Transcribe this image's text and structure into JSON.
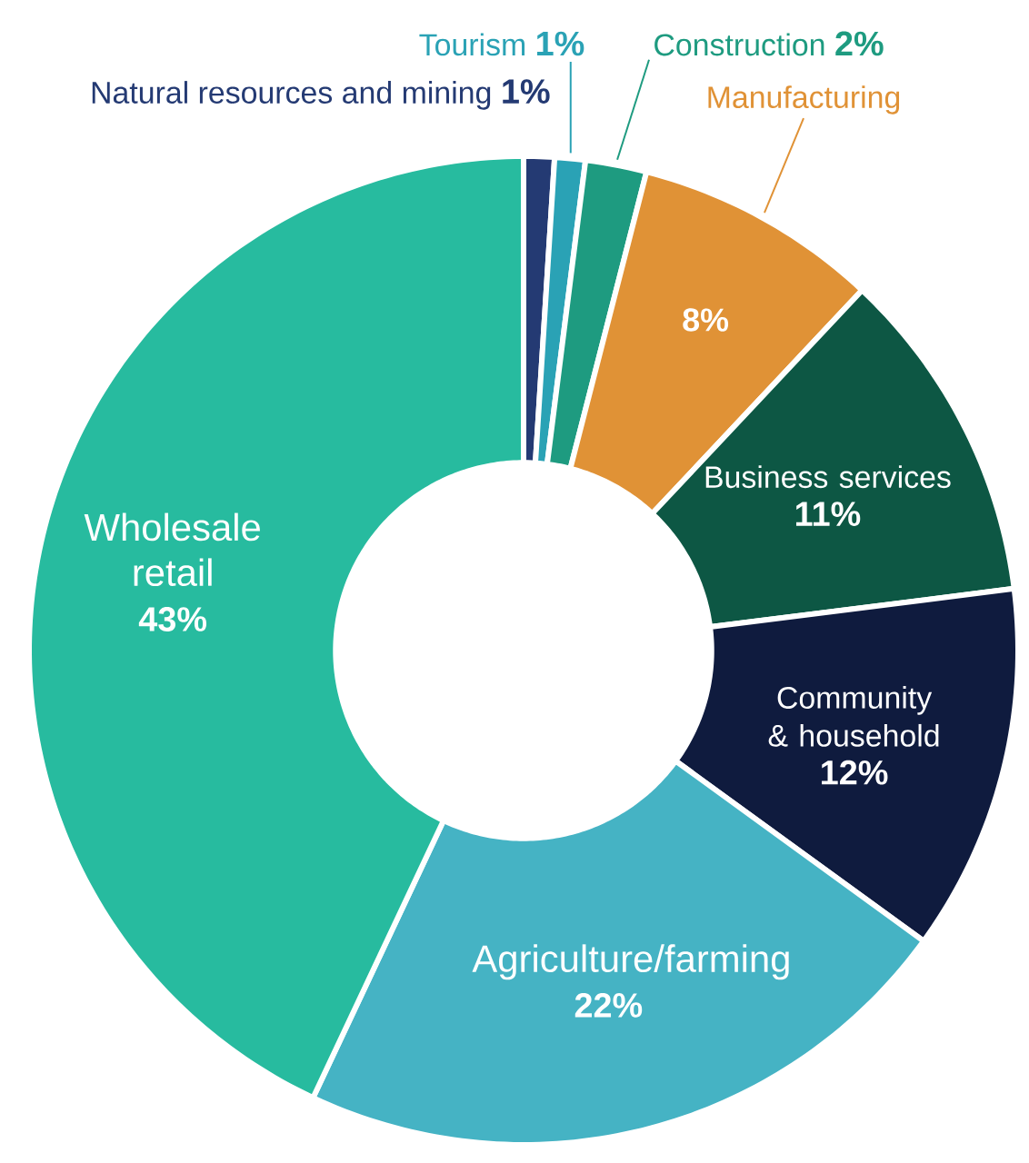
{
  "chart_data": {
    "type": "donut",
    "categories": [
      "Natural resources and mining",
      "Tourism",
      "Construction",
      "Manufacturing",
      "Business services",
      "Community & household",
      "Agriculture/farming",
      "Wholesale retail"
    ],
    "values": [
      1,
      1,
      2,
      8,
      11,
      12,
      22,
      43
    ],
    "colors": [
      "#243a73",
      "#2aa2b5",
      "#1e9b80",
      "#e09236",
      "#0d5744",
      "#0f1b3e",
      "#45b3c4",
      "#27bb9f"
    ],
    "value_labels": [
      "1%",
      "1%",
      "2%",
      "8%",
      "11%",
      "12%",
      "22%",
      "43%"
    ]
  }
}
